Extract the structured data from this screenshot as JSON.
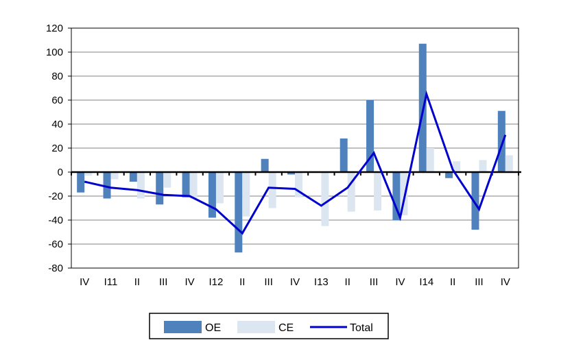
{
  "chart_data": {
    "type": "bar",
    "categories": [
      "IV",
      "I11",
      "II",
      "III",
      "IV",
      "I12",
      "II",
      "III",
      "IV",
      "I13",
      "II",
      "III",
      "IV",
      "I14",
      "II",
      "III",
      "IV"
    ],
    "series": [
      {
        "name": "OE",
        "kind": "bar",
        "color": "#4f81bd",
        "values": [
          -17,
          -22,
          -8,
          -27,
          -21,
          -38,
          -67,
          11,
          -2,
          0,
          28,
          60,
          -40,
          107,
          -5,
          -48,
          51
        ]
      },
      {
        "name": "CE",
        "kind": "bar",
        "color": "#dce6f1",
        "values": [
          -3,
          -6,
          -22,
          -13,
          -22,
          -26,
          -37,
          -30,
          -21,
          -45,
          -33,
          -32,
          -36,
          20,
          9,
          10,
          14
        ]
      },
      {
        "name": "Total",
        "kind": "line",
        "color": "#0000cc",
        "values": [
          -8,
          -13,
          -15,
          -19,
          -20,
          -31,
          -51,
          -13,
          -14,
          -28,
          -13,
          16,
          -38,
          65,
          2,
          -31,
          31
        ]
      }
    ],
    "ylim": [
      -80,
      120
    ],
    "yticks": [
      "120",
      "100",
      "80",
      "60",
      "40",
      "20",
      "0",
      "-20",
      "-40",
      "-60",
      "-80"
    ],
    "grid": true,
    "legend_position": "bottom-center",
    "title": "",
    "xlabel": "",
    "ylabel": ""
  }
}
